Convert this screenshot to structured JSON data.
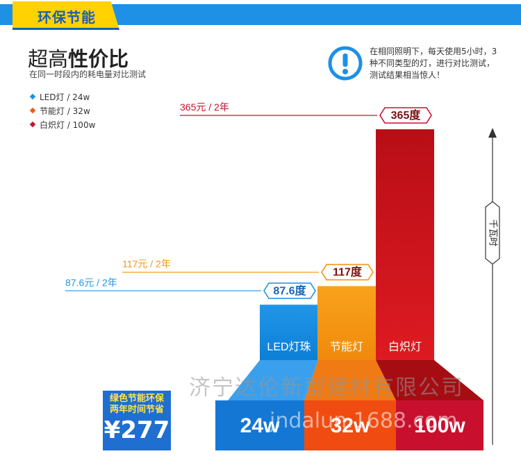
{
  "header": {
    "tab_label": "环保节能"
  },
  "headline": {
    "normal": "超高",
    "bold": "性价比",
    "subtitle": "在同一时段内的耗电量对比测试"
  },
  "notice": {
    "text": "在相同照明下，每天使用5小时，3种不同类型的灯，进行对比测试，测试结果相当惊人！",
    "icon": "exclamation-circle-icon"
  },
  "legend": [
    {
      "label": "LED灯 / 24w",
      "color": "#1e90e6"
    },
    {
      "label": "节能灯 / 32w",
      "color": "#f05a14"
    },
    {
      "label": "白炽灯 / 100w",
      "color": "#c8102e"
    }
  ],
  "chart_data": {
    "type": "bar",
    "categories": [
      "LED灯珠",
      "节能灯",
      "白炽灯"
    ],
    "values": [
      87.6,
      117,
      365
    ],
    "value_labels": [
      "87.6度",
      "117度",
      "365度"
    ],
    "cost_labels": [
      "87.6元 / 2年",
      "117元 / 2年",
      "365元 / 2年"
    ],
    "wattages": [
      "24w",
      "32w",
      "100w"
    ],
    "ylabel": "千瓦时",
    "colors": [
      "#2196e8",
      "#f79414",
      "#c8102e"
    ],
    "grid": false
  },
  "badge": {
    "line1": "绿色节能环保",
    "line2": "两年时间节省",
    "amount": "¥277"
  },
  "watermark": {
    "line1": "济宁达伦新型建材有限公司",
    "line2": "jndalun.1688.com"
  }
}
